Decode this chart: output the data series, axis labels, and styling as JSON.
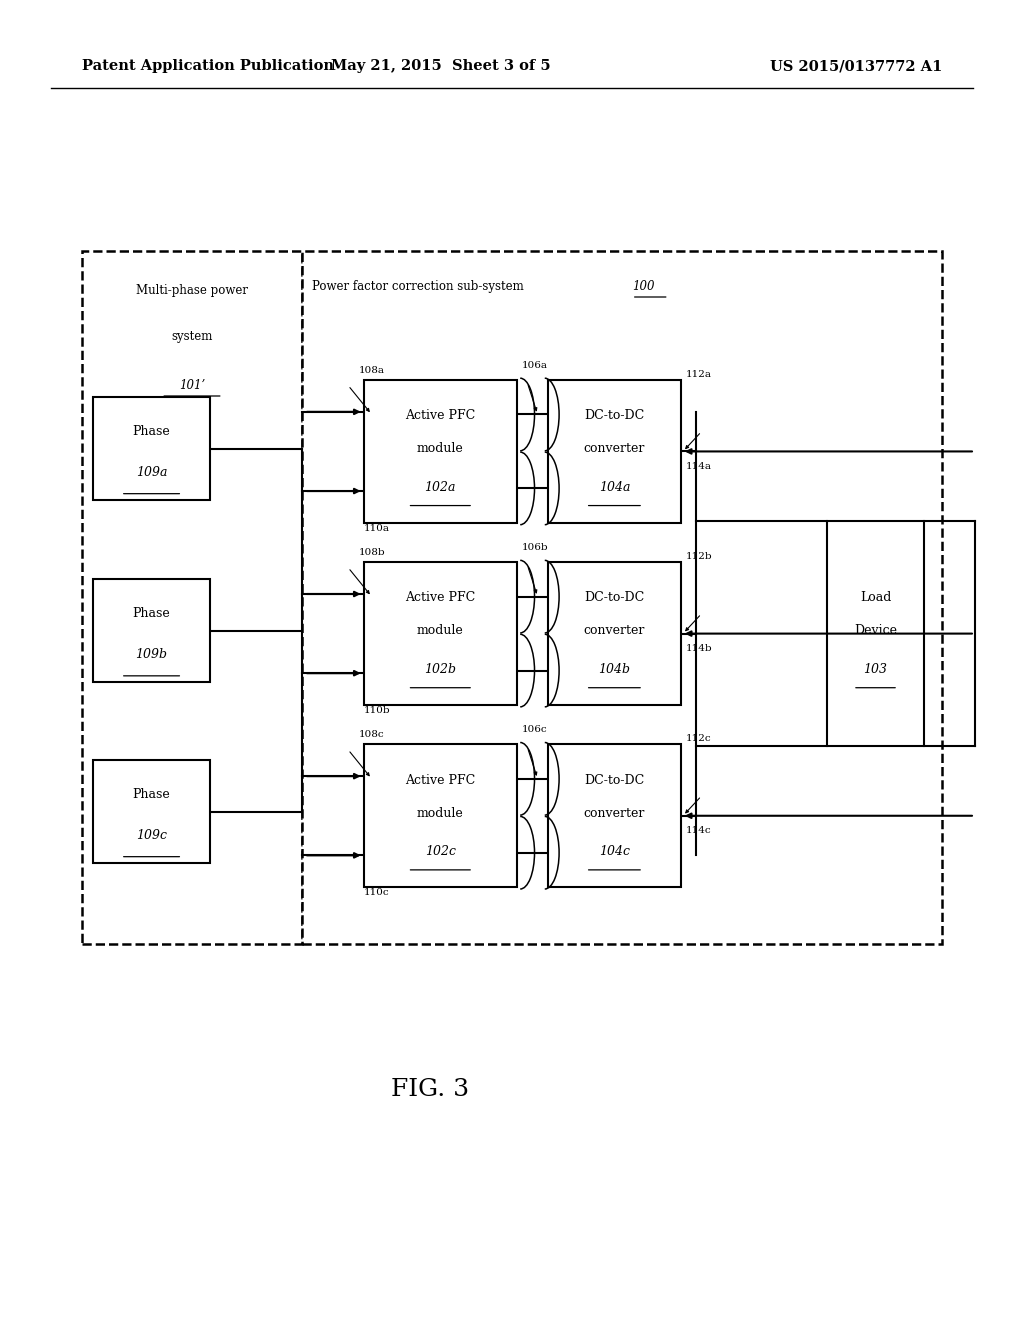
{
  "bg_color": "#ffffff",
  "header_left": "Patent Application Publication",
  "header_center": "May 21, 2015  Sheet 3 of 5",
  "header_right": "US 2015/0137772 A1",
  "fig_label": "FIG. 3"
}
